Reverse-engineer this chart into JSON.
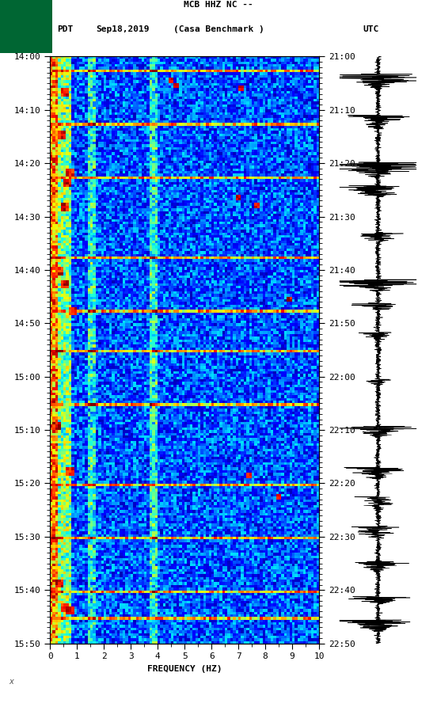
{
  "title_line1": "MCB HHZ NC --",
  "title_line2": "(Casa Benchmark )",
  "date_label": "Sep18,2019",
  "left_tz": "PDT",
  "right_tz": "UTC",
  "freq_label": "FREQUENCY (HZ)",
  "freq_min": 0,
  "freq_max": 10,
  "freq_ticks": [
    0,
    1,
    2,
    3,
    4,
    5,
    6,
    7,
    8,
    9,
    10
  ],
  "pdt_ticks": [
    "14:00",
    "14:10",
    "14:20",
    "14:30",
    "14:40",
    "14:50",
    "15:00",
    "15:10",
    "15:20",
    "15:30",
    "15:40",
    "15:50"
  ],
  "utc_ticks": [
    "21:00",
    "21:10",
    "21:20",
    "21:30",
    "21:40",
    "21:50",
    "22:00",
    "22:10",
    "22:20",
    "22:30",
    "22:40",
    "22:50"
  ],
  "background_color": "#ffffff",
  "spectrogram_bg": "#00008B",
  "colormap": "jet",
  "fig_width": 5.52,
  "fig_height": 8.93,
  "dpi": 100
}
